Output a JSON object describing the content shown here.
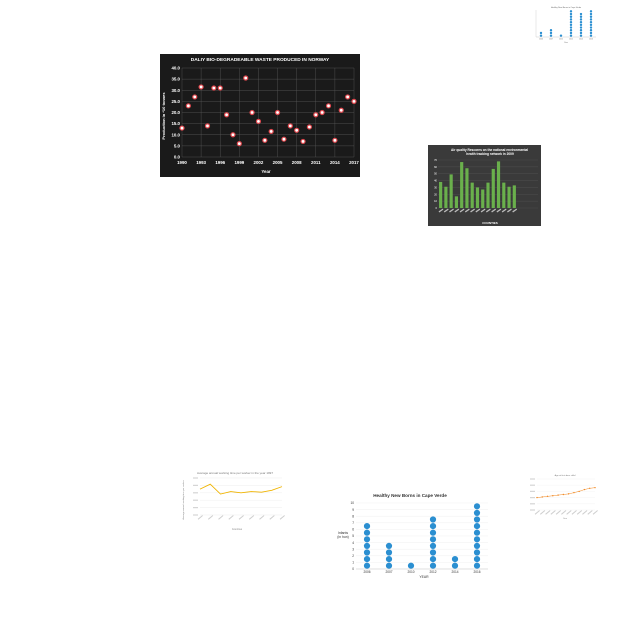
{
  "charts": {
    "scatter": {
      "chart_data": {
        "type": "scatter",
        "title": "DALIY BIO-DEGRADEABLE WASTE PRODUCED IN NORWAY",
        "xlabel": "Year",
        "ylabel": "Production in *10 tonnes",
        "x_tick_labels": [
          "1990",
          "1993",
          "1996",
          "1999",
          "2002",
          "2005",
          "2008",
          "2011",
          "2014",
          "2017"
        ],
        "y_tick_labels": [
          "0.0",
          "5.0",
          "10.0",
          "15.0",
          "20.0",
          "25.0",
          "30.0",
          "35.0",
          "40.0"
        ],
        "xlim": [
          1990,
          2017
        ],
        "ylim": [
          0,
          40
        ],
        "grid": true,
        "x": [
          1990,
          1991,
          1992,
          1993,
          1994,
          1995,
          1996,
          1997,
          1998,
          1999,
          2000,
          2001,
          2002,
          2003,
          2004,
          2005,
          2006,
          2007,
          2008,
          2009,
          2010,
          2011,
          2012,
          2013,
          2014,
          2015,
          2016,
          2017
        ],
        "y": [
          13.0,
          23.0,
          27.0,
          31.5,
          14.0,
          31.0,
          31.0,
          19.0,
          10.0,
          6.0,
          35.5,
          20.0,
          16.0,
          7.5,
          11.5,
          20.0,
          8.0,
          14.0,
          12.0,
          7.0,
          13.5,
          19.0,
          20.0,
          23.0,
          7.5,
          21.0,
          27.0,
          25.0
        ]
      },
      "colors": {
        "background": "#1a1a1a",
        "grid": "#5a5a5a",
        "marker_fill": "#ffffff",
        "marker_stroke": "#e0484e",
        "text": "#ffffff"
      }
    },
    "bars": {
      "chart_data": {
        "type": "bar",
        "title": "Air quality Rescores on the national environmental health tracking network in 2009",
        "xlabel": "COUNTIES",
        "ylabel": "",
        "ylim": [
          0,
          70
        ],
        "y_tick_labels": [
          "0",
          "10",
          "20",
          "30",
          "40",
          "50",
          "60",
          "70"
        ],
        "categories": [
          "",
          "",
          "",
          "",
          "",
          "",
          "",
          "",
          "",
          "",
          "",
          "",
          "",
          "",
          "",
          "",
          "",
          "",
          ""
        ],
        "values": [
          38,
          31,
          49,
          17,
          67,
          58,
          37,
          30,
          27,
          37,
          57,
          68,
          37,
          31,
          33,
          0,
          0,
          0,
          0
        ]
      },
      "colors": {
        "background": "#3a3a3a",
        "bar": "#6ab04c",
        "grid": "#5c5c5c",
        "text": "#ffffff"
      }
    },
    "dotsmall": {
      "chart_data": {
        "type": "scatter",
        "title": "Healthy New Borns in Cape Verde",
        "xlabel": "Year",
        "ylabel": "Infants (in hun)",
        "categories": [
          "2006",
          "2007",
          "2010",
          "2012",
          "2014",
          "2016"
        ],
        "values": [
          2,
          3,
          1,
          10,
          9,
          10
        ],
        "ylim": [
          0,
          10
        ]
      },
      "colors": {
        "dot": "#2b8fd1",
        "axis": "#bbbbbb",
        "text": "#666666"
      }
    },
    "line": {
      "chart_data": {
        "type": "line",
        "title": "Average annual working time per worker in the year 1997",
        "xlabel": "Countries",
        "ylabel": "Average annual working time per worker",
        "categories": [
          "",
          "",
          "",
          "",
          "",
          "",
          "",
          "",
          ""
        ],
        "values": [
          2100,
          2500,
          1700,
          1900,
          1800,
          1900,
          1850,
          2000,
          2300
        ],
        "ylim": [
          0,
          3000
        ]
      },
      "colors": {
        "line": "#f0b400",
        "grid": "#e3e3e3",
        "text": "#888888"
      }
    },
    "dotbig": {
      "chart_data": {
        "type": "scatter",
        "title": "Healthy New Borns in Cape Verde",
        "xlabel": "YEAR",
        "ylabel": "Infants (in hun)",
        "categories": [
          "2006",
          "2007",
          "2010",
          "2012",
          "2014",
          "2016"
        ],
        "values": [
          7,
          4,
          1,
          8,
          2,
          10
        ],
        "ylim": [
          0,
          10
        ],
        "y_tick_labels": [
          "0",
          "1",
          "2",
          "3",
          "4",
          "5",
          "6",
          "7",
          "8",
          "9",
          "10"
        ]
      },
      "colors": {
        "dot": "#2b8fd1",
        "grid": "#e6e6e6",
        "text": "#333333"
      }
    },
    "trend": {
      "chart_data": {
        "type": "line",
        "title": "Age at first-born child",
        "xlabel": "Year",
        "ylabel": "",
        "values": [
          20,
          21,
          22,
          23,
          24,
          25,
          26,
          28,
          30,
          33,
          35,
          36
        ],
        "ylim": [
          0,
          50
        ]
      },
      "colors": {
        "line": "#f28c28",
        "grid": "#eeeeee",
        "text": "#888888"
      }
    }
  }
}
